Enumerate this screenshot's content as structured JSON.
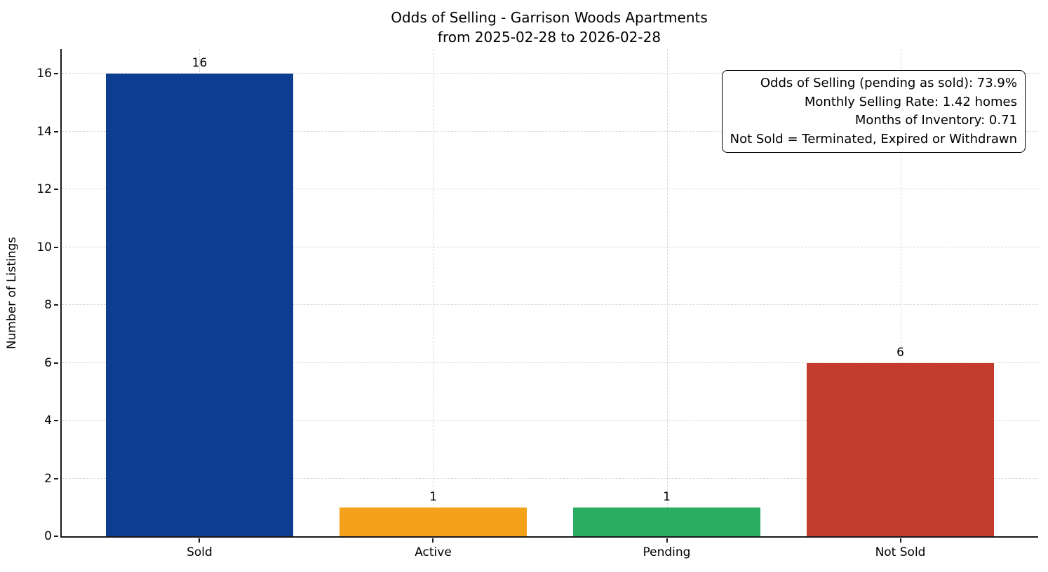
{
  "chart_data": {
    "type": "bar",
    "title": "Odds of Selling - Garrison Woods Apartments",
    "subtitle": "from 2025-02-28 to 2026-02-28",
    "xlabel": "",
    "ylabel": "Number of Listings",
    "categories": [
      "Sold",
      "Active",
      "Pending",
      "Not Sold"
    ],
    "values": [
      16,
      1,
      1,
      6
    ],
    "value_labels": [
      "16",
      "1",
      "1",
      "6"
    ],
    "bar_colors": [
      "#0d3d91",
      "#f5a21b",
      "#2aad61",
      "#c23b2c"
    ],
    "yticks": [
      0,
      2,
      4,
      6,
      8,
      10,
      12,
      14,
      16
    ],
    "ylim": [
      0,
      16.85
    ],
    "grid": {
      "horizontal": true,
      "vertical": true,
      "style": "dashed"
    },
    "legend": "none",
    "annotation_box": {
      "position": "top-right",
      "align": "right",
      "lines": [
        "Odds of Selling (pending as sold): 73.9%",
        "Monthly Selling Rate: 1.42 homes",
        "Months of Inventory: 0.71",
        "Not Sold = Terminated, Expired or Withdrawn"
      ]
    },
    "colors": {
      "background": "#ffffff",
      "axis": "#1a1a1a",
      "grid": "#d9d9d9",
      "text": "#000000",
      "annotation_border": "#000000"
    }
  }
}
